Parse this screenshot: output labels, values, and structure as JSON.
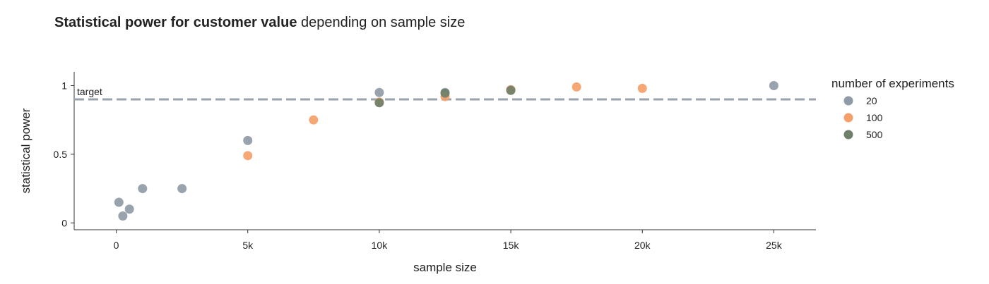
{
  "chart_data": {
    "type": "scatter",
    "title_bold": "Statistical power for customer value",
    "title_rest": " depending on sample size",
    "xlabel": "sample size",
    "ylabel": "statistical power",
    "xlim": [
      -1600,
      26600
    ],
    "ylim": [
      -0.05,
      1.1
    ],
    "x_ticks": [
      0,
      5000,
      10000,
      15000,
      20000,
      25000
    ],
    "x_tick_labels": [
      "0",
      "5k",
      "10k",
      "15k",
      "20k",
      "25k"
    ],
    "y_ticks": [
      0,
      0.5,
      1
    ],
    "y_tick_labels": [
      "0",
      "0.5",
      "1"
    ],
    "grid": false,
    "legend": {
      "title": "number of experiments",
      "position": "right"
    },
    "target_line": {
      "y": 0.9,
      "label": "target",
      "color": "#9aa3ad"
    },
    "series": [
      {
        "name": "20",
        "color": "#8f9ba6",
        "points": [
          {
            "x": 100,
            "y": 0.15
          },
          {
            "x": 250,
            "y": 0.05
          },
          {
            "x": 500,
            "y": 0.1
          },
          {
            "x": 1000,
            "y": 0.25
          },
          {
            "x": 2500,
            "y": 0.25
          },
          {
            "x": 5000,
            "y": 0.6
          },
          {
            "x": 10000,
            "y": 0.95
          },
          {
            "x": 12500,
            "y": 0.95
          },
          {
            "x": 15000,
            "y": 0.97
          },
          {
            "x": 25000,
            "y": 1.0
          }
        ]
      },
      {
        "name": "100",
        "color": "#f5a06a",
        "points": [
          {
            "x": 5000,
            "y": 0.49
          },
          {
            "x": 7500,
            "y": 0.75
          },
          {
            "x": 10000,
            "y": 0.88
          },
          {
            "x": 12500,
            "y": 0.92
          },
          {
            "x": 15000,
            "y": 0.97
          },
          {
            "x": 17500,
            "y": 0.99
          },
          {
            "x": 20000,
            "y": 0.98
          }
        ]
      },
      {
        "name": "500",
        "color": "#6e8068",
        "points": [
          {
            "x": 10000,
            "y": 0.875
          },
          {
            "x": 12500,
            "y": 0.945
          },
          {
            "x": 15000,
            "y": 0.965
          }
        ]
      }
    ]
  }
}
